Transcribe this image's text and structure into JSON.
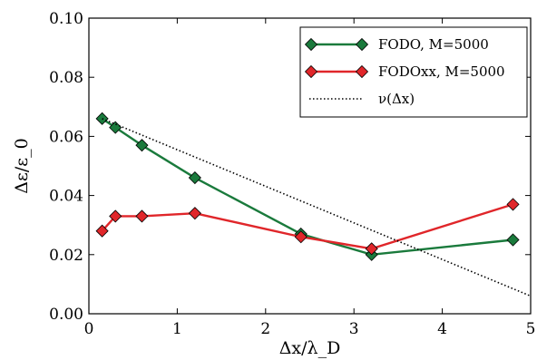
{
  "chart_data": {
    "type": "line",
    "xlabel": "Δx/λ_D",
    "ylabel": "Δε/ε_0",
    "xlim": [
      0,
      5
    ],
    "ylim": [
      0,
      0.1
    ],
    "xticks": [
      "0",
      "1",
      "2",
      "3",
      "4",
      "5"
    ],
    "yticks": [
      "0.00",
      "0.02",
      "0.04",
      "0.06",
      "0.08",
      "0.10"
    ],
    "grid": false,
    "legend_position": "top-right",
    "series": [
      {
        "name": "FODO, M=5000",
        "color": "#1a7a3c",
        "marker": "diamond",
        "style": "solid",
        "x": [
          0.15,
          0.3,
          0.6,
          1.2,
          2.4,
          3.2,
          4.8
        ],
        "y": [
          0.066,
          0.063,
          0.057,
          0.046,
          0.027,
          0.02,
          0.025
        ]
      },
      {
        "name": "FODOxx, M=5000",
        "color": "#e0262a",
        "marker": "diamond",
        "style": "solid",
        "x": [
          0.15,
          0.3,
          0.6,
          1.2,
          2.4,
          3.2,
          4.8
        ],
        "y": [
          0.028,
          0.033,
          0.033,
          0.034,
          0.026,
          0.022,
          0.037
        ]
      },
      {
        "name": "ν(Δx)",
        "color": "#000000",
        "marker": "none",
        "style": "dotted",
        "x": [
          0.15,
          5.0
        ],
        "y": [
          0.066,
          0.006
        ]
      }
    ]
  }
}
